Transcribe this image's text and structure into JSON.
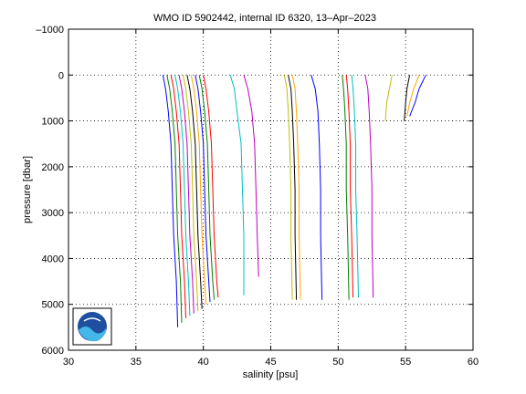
{
  "chart_data": {
    "type": "line",
    "title": "WMO ID 5902442, internal ID 6320, 13–Apr–2023",
    "xlabel": "salinity [psu]",
    "ylabel": "pressure [dbar]",
    "xlim": [
      30,
      60
    ],
    "ylim": [
      -1000,
      6000
    ],
    "y_reversed": true,
    "grid": true,
    "grid_style": "dotted",
    "x_ticks": [
      "30",
      "35",
      "40",
      "45",
      "50",
      "55",
      "60"
    ],
    "y_ticks": [
      "–1000",
      "0",
      "1000",
      "2000",
      "3000",
      "4000",
      "5000",
      "6000"
    ],
    "x_tick_values": [
      30,
      35,
      40,
      45,
      50,
      55,
      60
    ],
    "y_tick_values": [
      -1000,
      0,
      1000,
      2000,
      3000,
      4000,
      5000,
      6000
    ],
    "series_colors": [
      "#0000ff",
      "#008000",
      "#ff0000",
      "#00bfbf",
      "#bf00bf",
      "#bfbf00",
      "#000000",
      "#ffa500"
    ],
    "series": [
      {
        "values": [
          [
            37.0,
            0
          ],
          [
            37.2,
            300
          ],
          [
            37.4,
            800
          ],
          [
            37.6,
            1500
          ],
          [
            37.7,
            2500
          ],
          [
            37.8,
            3500
          ],
          [
            38.0,
            4500
          ],
          [
            38.1,
            5500
          ]
        ]
      },
      {
        "values": [
          [
            37.3,
            0
          ],
          [
            37.5,
            300
          ],
          [
            37.7,
            800
          ],
          [
            37.9,
            1500
          ],
          [
            38.0,
            2500
          ],
          [
            38.1,
            3500
          ],
          [
            38.3,
            4500
          ],
          [
            38.4,
            5400
          ]
        ]
      },
      {
        "values": [
          [
            37.6,
            0
          ],
          [
            37.8,
            300
          ],
          [
            38.0,
            800
          ],
          [
            38.2,
            1500
          ],
          [
            38.3,
            2500
          ],
          [
            38.4,
            3500
          ],
          [
            38.6,
            4500
          ],
          [
            38.7,
            5300
          ]
        ]
      },
      {
        "values": [
          [
            37.9,
            0
          ],
          [
            38.1,
            300
          ],
          [
            38.3,
            800
          ],
          [
            38.5,
            1500
          ],
          [
            38.6,
            2500
          ],
          [
            38.7,
            3500
          ],
          [
            38.9,
            4500
          ],
          [
            39.0,
            5250
          ]
        ]
      },
      {
        "values": [
          [
            38.2,
            0
          ],
          [
            38.4,
            300
          ],
          [
            38.6,
            800
          ],
          [
            38.8,
            1500
          ],
          [
            38.9,
            2500
          ],
          [
            39.0,
            3500
          ],
          [
            39.2,
            4500
          ],
          [
            39.3,
            5200
          ]
        ]
      },
      {
        "values": [
          [
            38.5,
            0
          ],
          [
            38.7,
            300
          ],
          [
            38.9,
            800
          ],
          [
            39.1,
            1500
          ],
          [
            39.2,
            2500
          ],
          [
            39.3,
            3500
          ],
          [
            39.5,
            4500
          ],
          [
            39.6,
            5150
          ]
        ]
      },
      {
        "values": [
          [
            38.8,
            0
          ],
          [
            39.0,
            300
          ],
          [
            39.2,
            800
          ],
          [
            39.4,
            1500
          ],
          [
            39.5,
            2500
          ],
          [
            39.6,
            3500
          ],
          [
            39.8,
            4500
          ],
          [
            39.9,
            5100
          ]
        ]
      },
      {
        "values": [
          [
            39.1,
            0
          ],
          [
            39.3,
            300
          ],
          [
            39.5,
            800
          ],
          [
            39.7,
            1500
          ],
          [
            39.8,
            2500
          ],
          [
            39.9,
            3500
          ],
          [
            40.1,
            4500
          ],
          [
            40.2,
            5000
          ]
        ]
      },
      {
        "values": [
          [
            39.4,
            0
          ],
          [
            39.6,
            300
          ],
          [
            39.8,
            800
          ],
          [
            40.0,
            1500
          ],
          [
            40.1,
            2500
          ],
          [
            40.2,
            3500
          ],
          [
            40.4,
            4500
          ],
          [
            40.5,
            4950
          ]
        ]
      },
      {
        "values": [
          [
            39.7,
            0
          ],
          [
            39.9,
            300
          ],
          [
            40.1,
            800
          ],
          [
            40.3,
            1500
          ],
          [
            40.4,
            2500
          ],
          [
            40.5,
            3500
          ],
          [
            40.7,
            4500
          ],
          [
            40.8,
            4900
          ]
        ]
      },
      {
        "values": [
          [
            40.0,
            0
          ],
          [
            40.2,
            300
          ],
          [
            40.4,
            800
          ],
          [
            40.6,
            1500
          ],
          [
            40.7,
            2500
          ],
          [
            40.8,
            3500
          ],
          [
            41.0,
            4500
          ],
          [
            41.1,
            4850
          ]
        ]
      },
      {
        "values": [
          [
            42.0,
            0
          ],
          [
            42.3,
            300
          ],
          [
            42.5,
            800
          ],
          [
            42.8,
            1500
          ],
          [
            42.9,
            2500
          ],
          [
            43.0,
            3500
          ],
          [
            43.0,
            4800
          ]
        ]
      },
      {
        "values": [
          [
            43.0,
            0
          ],
          [
            43.3,
            300
          ],
          [
            43.6,
            800
          ],
          [
            43.8,
            1500
          ],
          [
            43.9,
            2500
          ],
          [
            44.0,
            3500
          ],
          [
            44.1,
            4400
          ]
        ]
      },
      {
        "values": [
          [
            46.0,
            0
          ],
          [
            46.2,
            300
          ],
          [
            46.3,
            800
          ],
          [
            46.4,
            1500
          ],
          [
            46.5,
            2500
          ],
          [
            46.5,
            3500
          ],
          [
            46.6,
            4900
          ]
        ]
      },
      {
        "values": [
          [
            46.3,
            0
          ],
          [
            46.5,
            300
          ],
          [
            46.6,
            800
          ],
          [
            46.7,
            1500
          ],
          [
            46.8,
            2500
          ],
          [
            46.8,
            3500
          ],
          [
            46.9,
            4900
          ]
        ]
      },
      {
        "values": [
          [
            46.6,
            0
          ],
          [
            46.8,
            300
          ],
          [
            46.9,
            800
          ],
          [
            47.0,
            1500
          ],
          [
            47.1,
            2500
          ],
          [
            47.1,
            3500
          ],
          [
            47.2,
            4900
          ]
        ]
      },
      {
        "values": [
          [
            48.0,
            0
          ],
          [
            48.3,
            300
          ],
          [
            48.5,
            800
          ],
          [
            48.6,
            1500
          ],
          [
            48.7,
            2500
          ],
          [
            48.7,
            3500
          ],
          [
            48.8,
            4900
          ]
        ]
      },
      {
        "values": [
          [
            50.3,
            0
          ],
          [
            50.4,
            300
          ],
          [
            50.5,
            800
          ],
          [
            50.6,
            1500
          ],
          [
            50.6,
            2500
          ],
          [
            50.7,
            3500
          ],
          [
            50.8,
            4900
          ]
        ]
      },
      {
        "values": [
          [
            50.6,
            0
          ],
          [
            50.7,
            300
          ],
          [
            50.8,
            800
          ],
          [
            50.9,
            1500
          ],
          [
            50.9,
            2500
          ],
          [
            51.0,
            3500
          ],
          [
            51.1,
            4850
          ]
        ]
      },
      {
        "values": [
          [
            51.0,
            0
          ],
          [
            51.1,
            300
          ],
          [
            51.2,
            800
          ],
          [
            51.3,
            1500
          ],
          [
            51.3,
            2500
          ],
          [
            51.4,
            3500
          ],
          [
            51.5,
            4850
          ]
        ]
      },
      {
        "values": [
          [
            52.0,
            0
          ],
          [
            52.2,
            300
          ],
          [
            52.3,
            800
          ],
          [
            52.4,
            1500
          ],
          [
            52.5,
            2500
          ],
          [
            52.5,
            3500
          ],
          [
            52.6,
            4850
          ]
        ]
      },
      {
        "values": [
          [
            54.0,
            0
          ],
          [
            53.8,
            300
          ],
          [
            53.6,
            600
          ],
          [
            53.5,
            1000
          ]
        ]
      },
      {
        "values": [
          [
            55.3,
            0
          ],
          [
            55.1,
            300
          ],
          [
            55.0,
            600
          ],
          [
            54.9,
            1000
          ]
        ]
      },
      {
        "values": [
          [
            56.0,
            0
          ],
          [
            55.6,
            300
          ],
          [
            55.3,
            600
          ],
          [
            55.1,
            900
          ]
        ]
      },
      {
        "values": [
          [
            56.5,
            0
          ],
          [
            56.0,
            300
          ],
          [
            55.7,
            600
          ],
          [
            55.3,
            900
          ]
        ]
      }
    ]
  }
}
